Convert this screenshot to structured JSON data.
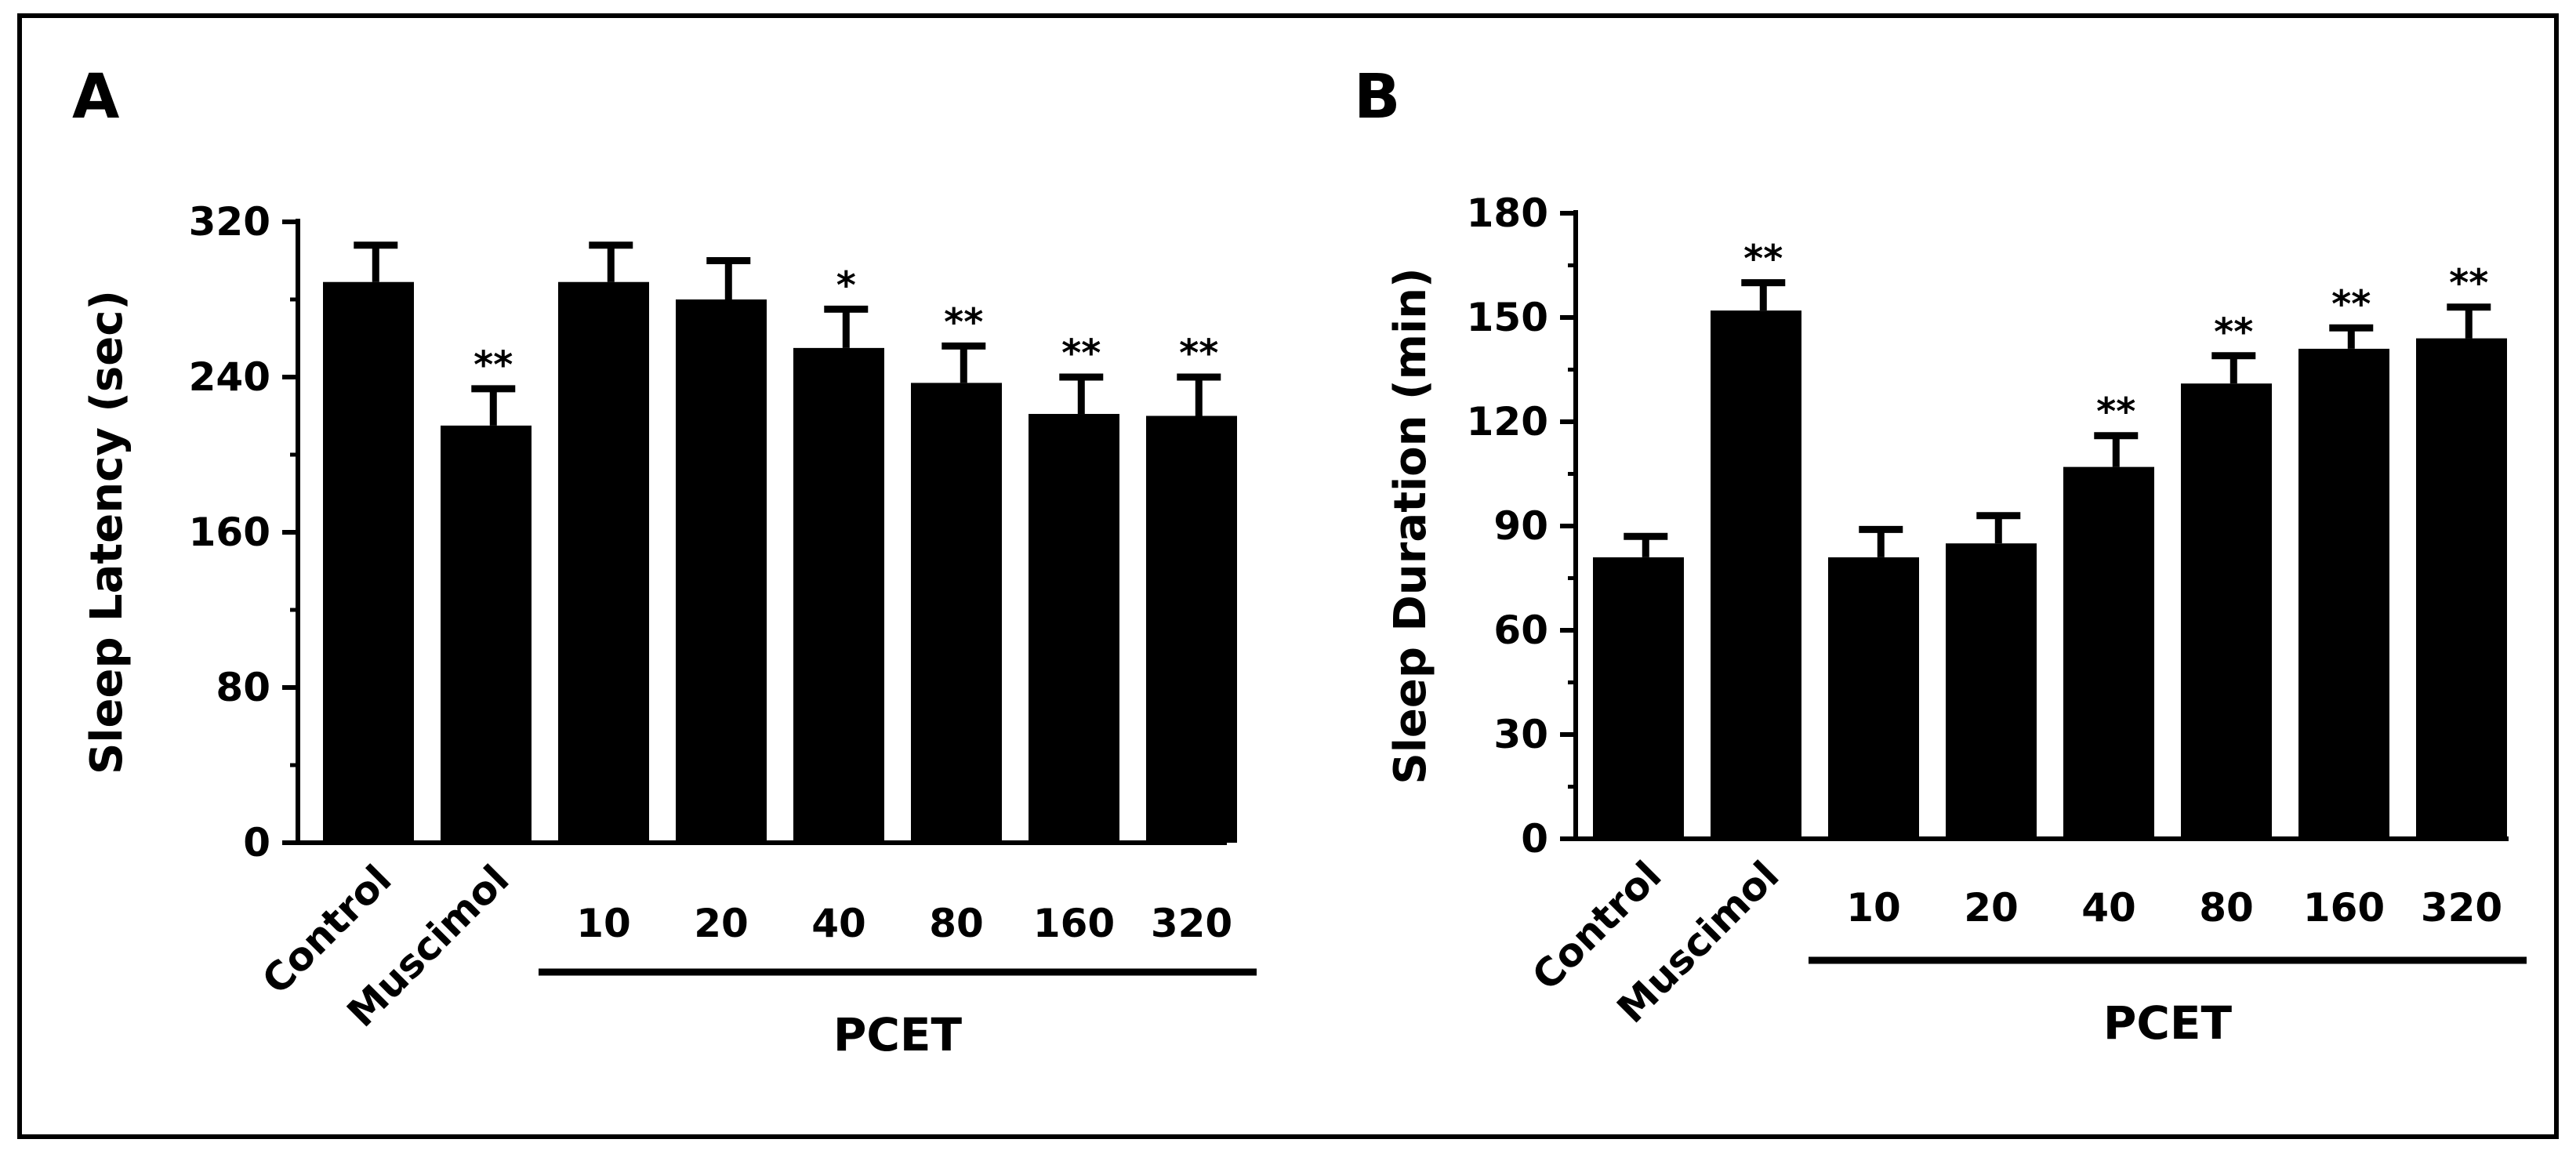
{
  "chart_data": [
    {
      "type": "bar",
      "panel": "A",
      "categories": [
        "Control",
        "Muscimol",
        "10",
        "20",
        "40",
        "80",
        "160",
        "320"
      ],
      "values": [
        289,
        215,
        289,
        280,
        255,
        237,
        221,
        220
      ],
      "errors": [
        19,
        19,
        19,
        20,
        20,
        19,
        19,
        20
      ],
      "significance": [
        "",
        "**",
        "",
        "",
        "*",
        "**",
        "**",
        "**"
      ],
      "ylabel": "Sleep Latency (sec)",
      "ylim": [
        0,
        320
      ],
      "yticks": [
        "0",
        "80",
        "160",
        "240",
        "320"
      ],
      "group_label": "PCET",
      "group_categories": [
        "10",
        "20",
        "40",
        "80",
        "160",
        "320"
      ]
    },
    {
      "type": "bar",
      "panel": "B",
      "categories": [
        "Control",
        "Muscimol",
        "10",
        "20",
        "40",
        "80",
        "160",
        "320"
      ],
      "values": [
        81,
        152,
        81,
        85,
        107,
        131,
        141,
        144
      ],
      "errors": [
        6,
        8,
        8,
        8,
        9,
        8,
        6,
        9
      ],
      "significance": [
        "",
        "**",
        "",
        "",
        "**",
        "**",
        "**",
        "**"
      ],
      "ylabel": "Sleep Duration (min)",
      "ylim": [
        0,
        180
      ],
      "yticks": [
        "0",
        "30",
        "60",
        "90",
        "120",
        "150",
        "180"
      ],
      "group_label": "PCET",
      "group_categories": [
        "10",
        "20",
        "40",
        "80",
        "160",
        "320"
      ]
    }
  ],
  "colors": {
    "bar": "#000000",
    "frame": "#000000",
    "background": "#ffffff"
  }
}
